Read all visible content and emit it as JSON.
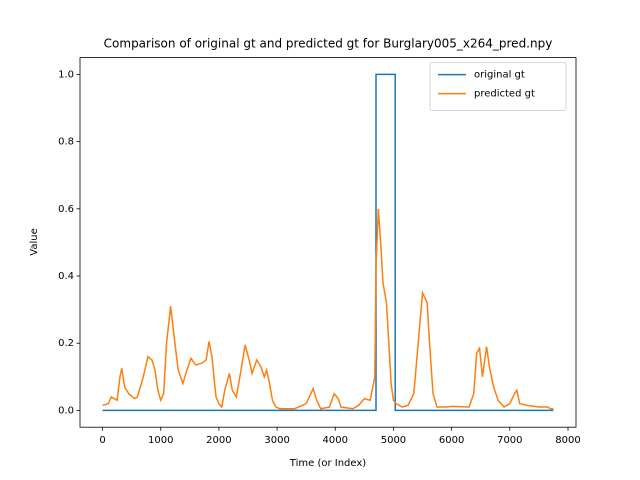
{
  "chart_data": {
    "type": "line",
    "title": "Comparison of original gt and predicted gt for Burglary005_x264_pred.npy",
    "x_label": "Time (or Index)",
    "y_label": "Value",
    "xlim": [
      -387.5,
      8137.5
    ],
    "ylim": [
      -0.05,
      1.05
    ],
    "xticks": [
      0,
      1000,
      2000,
      3000,
      4000,
      5000,
      6000,
      7000,
      8000
    ],
    "yticks": [
      {
        "value": 0,
        "label": "0.0"
      },
      {
        "value": 0.2,
        "label": "0.2"
      },
      {
        "value": 0.4,
        "label": "0.4"
      },
      {
        "value": 0.6,
        "label": "0.6"
      },
      {
        "value": 0.8,
        "label": "0.8"
      },
      {
        "value": 1,
        "label": "1.0"
      }
    ],
    "legend": "upper right",
    "series": [
      {
        "name": "original gt",
        "color": "#1f77b4",
        "x": [
          0,
          4700,
          4700,
          5030,
          5030,
          7750
        ],
        "values": [
          0,
          0,
          1,
          1,
          0,
          0
        ]
      },
      {
        "name": "predicted gt",
        "color": "#ff7f0e",
        "x": [
          0,
          100,
          150,
          250,
          300,
          330,
          380,
          450,
          550,
          600,
          700,
          780,
          850,
          900,
          950,
          1000,
          1050,
          1100,
          1170,
          1230,
          1300,
          1380,
          1450,
          1520,
          1600,
          1700,
          1780,
          1830,
          1880,
          1950,
          2000,
          2050,
          2100,
          2180,
          2230,
          2300,
          2380,
          2450,
          2520,
          2570,
          2650,
          2720,
          2780,
          2820,
          2870,
          2920,
          2980,
          3050,
          3300,
          3500,
          3620,
          3680,
          3750,
          3900,
          3980,
          4050,
          4100,
          4300,
          4400,
          4500,
          4600,
          4680,
          4700,
          4740,
          4780,
          4820,
          4880,
          4920,
          4960,
          5000,
          5050,
          5150,
          5250,
          5350,
          5450,
          5500,
          5580,
          5620,
          5680,
          5750,
          5900,
          6000,
          6300,
          6380,
          6430,
          6480,
          6530,
          6600,
          6650,
          6720,
          6800,
          6900,
          7000,
          7080,
          7120,
          7170,
          7300,
          7500,
          7650,
          7700,
          7750
        ],
        "values": [
          0.015,
          0.02,
          0.04,
          0.03,
          0.1,
          0.125,
          0.07,
          0.05,
          0.035,
          0.04,
          0.1,
          0.16,
          0.15,
          0.12,
          0.06,
          0.03,
          0.05,
          0.2,
          0.31,
          0.22,
          0.12,
          0.08,
          0.12,
          0.155,
          0.135,
          0.14,
          0.15,
          0.205,
          0.16,
          0.04,
          0.02,
          0.01,
          0.06,
          0.11,
          0.06,
          0.04,
          0.12,
          0.195,
          0.15,
          0.11,
          0.15,
          0.13,
          0.1,
          0.12,
          0.08,
          0.03,
          0.01,
          0.005,
          0.005,
          0.02,
          0.065,
          0.03,
          0.005,
          0.01,
          0.05,
          0.035,
          0.01,
          0.005,
          0.015,
          0.035,
          0.03,
          0.1,
          0.43,
          0.6,
          0.5,
          0.38,
          0.32,
          0.2,
          0.08,
          0.03,
          0.02,
          0.01,
          0.015,
          0.05,
          0.25,
          0.35,
          0.32,
          0.2,
          0.05,
          0.01,
          0.01,
          0.012,
          0.01,
          0.05,
          0.17,
          0.185,
          0.1,
          0.19,
          0.13,
          0.07,
          0.03,
          0.01,
          0.02,
          0.05,
          0.06,
          0.02,
          0.015,
          0.01,
          0.01,
          0.005,
          0.005
        ]
      }
    ]
  }
}
